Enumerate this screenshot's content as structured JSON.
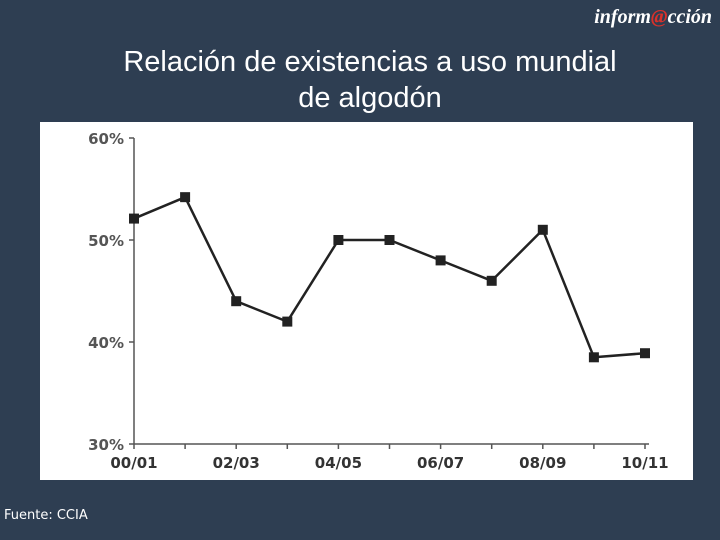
{
  "header": {
    "brand_prefix": "inform",
    "brand_at": "@",
    "brand_suffix": "cción",
    "title_line1": "Relación de existencias a uso mundial",
    "title_line2": "de algodón"
  },
  "footer": {
    "source": "Fuente: CCIA"
  },
  "colors": {
    "background": "#2e3e52",
    "brand_accent": "#d9312b",
    "series": "#222222"
  },
  "chart_data": {
    "type": "line",
    "title": "Relación de existencias a uso mundial de algodón",
    "xlabel": "",
    "ylabel": "",
    "ylim": [
      30,
      60
    ],
    "yticks": [
      30,
      40,
      50,
      60
    ],
    "ytick_labels": [
      "30%",
      "40%",
      "50%",
      "60%"
    ],
    "xtick_labels": [
      "00/01",
      "02/03",
      "04/05",
      "06/07",
      "08/09",
      "10/11"
    ],
    "grid": false,
    "legend": "none",
    "x": [
      "00/01",
      "01/02",
      "02/03",
      "03/04",
      "04/05",
      "05/06",
      "06/07",
      "07/08",
      "08/09",
      "09/10",
      "10/11"
    ],
    "series": [
      {
        "values": [
          52.1,
          54.2,
          44.0,
          42.0,
          50.0,
          50.0,
          48.0,
          46.0,
          51.0,
          38.5,
          38.9
        ]
      }
    ]
  }
}
